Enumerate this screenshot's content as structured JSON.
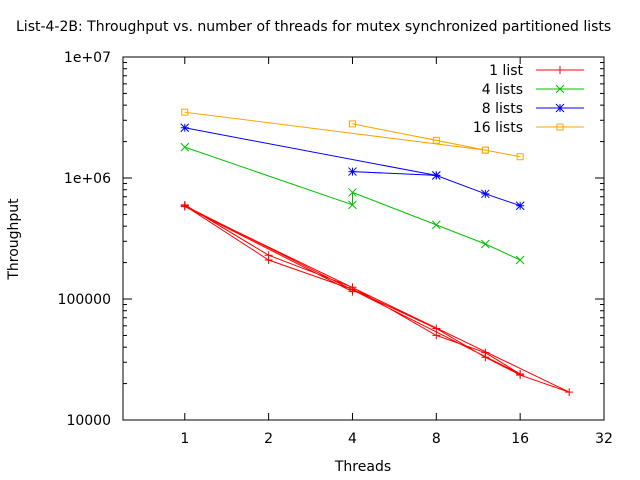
{
  "chart_data": {
    "type": "line",
    "title": "List-4-2B: Throughput vs. number of threads for mutex synchronized partitioned lists",
    "xlabel": "Threads",
    "ylabel": "Throughput",
    "x_scale": "log2",
    "y_scale": "log10",
    "xlim": [
      0.6,
      32
    ],
    "ylim": [
      10000,
      10000000
    ],
    "x_ticks": [
      1,
      2,
      4,
      8,
      16,
      32
    ],
    "x_tick_labels": [
      "1",
      "2",
      "4",
      "8",
      "16",
      "32"
    ],
    "y_ticks": [
      10000,
      100000,
      1000000,
      10000000
    ],
    "y_tick_labels": [
      "10000",
      "100000",
      "1e+06",
      "1e+07"
    ],
    "grid": false,
    "legend_position": "top-right",
    "series": [
      {
        "name": "1 list",
        "color": "#ff0000",
        "marker": "plus",
        "points": [
          [
            1,
            600000
          ],
          [
            2,
            230000
          ],
          [
            4,
            125000
          ],
          [
            8,
            50000
          ],
          [
            12,
            36000
          ],
          [
            16,
            24000
          ],
          [
            1,
            590000
          ],
          [
            2,
            210000
          ],
          [
            4,
            120000
          ],
          [
            8,
            57000
          ],
          [
            12,
            33000
          ],
          [
            16,
            23500
          ],
          [
            24,
            17000
          ],
          [
            1,
            580000
          ],
          [
            4,
            115000
          ]
        ]
      },
      {
        "name": "4 lists",
        "color": "#00c000",
        "marker": "cross",
        "points": [
          [
            1,
            1800000
          ],
          [
            4,
            600000
          ],
          [
            4,
            760000
          ],
          [
            8,
            410000
          ],
          [
            12,
            285000
          ],
          [
            16,
            210000
          ]
        ]
      },
      {
        "name": "8 lists",
        "color": "#0000ff",
        "marker": "star",
        "points": [
          [
            1,
            2600000
          ],
          [
            8,
            1050000
          ],
          [
            4,
            1130000
          ],
          [
            8,
            1050000
          ],
          [
            12,
            740000
          ],
          [
            16,
            590000
          ]
        ]
      },
      {
        "name": "16 lists",
        "color": "#ffa500",
        "marker": "square",
        "points": [
          [
            1,
            3500000
          ],
          [
            12,
            1700000
          ],
          [
            4,
            2800000
          ],
          [
            8,
            2050000
          ],
          [
            12,
            1700000
          ],
          [
            16,
            1500000
          ]
        ]
      }
    ]
  }
}
